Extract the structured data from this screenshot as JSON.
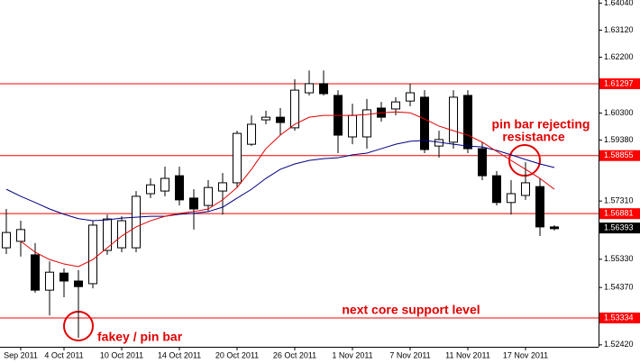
{
  "chart_data": {
    "type": "candlestick",
    "categories": [
      null,
      "Sep 2011",
      null,
      null,
      "4 Oct 2011",
      null,
      null,
      null,
      "10 Oct 2011",
      null,
      null,
      null,
      "14 Oct 2011",
      null,
      null,
      null,
      "20 Oct 2011",
      null,
      null,
      null,
      "26 Oct 2011",
      null,
      null,
      null,
      "1 Nov 2011",
      null,
      null,
      null,
      "7 Nov 2011",
      null,
      null,
      null,
      "11 Nov 2011",
      null,
      null,
      null,
      "17 Nov 2011",
      null,
      null
    ],
    "open": [
      1.5572,
      1.5594,
      1.5548,
      1.5428,
      1.5486,
      1.5459,
      1.545,
      1.5563,
      1.5572,
      1.5572,
      1.5756,
      1.5765,
      1.5817,
      1.5741,
      1.5716,
      1.5765,
      1.5793,
      1.5924,
      1.6007,
      1.6016,
      1.598,
      1.6099,
      1.613,
      1.609,
      1.5949,
      1.5949,
      1.6047,
      1.6044,
      1.6071,
      1.6084,
      1.5918,
      1.5931,
      1.609,
      1.5909,
      1.5817,
      1.5726,
      1.575,
      1.578,
      1.5643
    ],
    "high": [
      1.5704,
      1.5664,
      1.5588,
      1.5526,
      1.5502,
      1.5496,
      1.5664,
      1.5685,
      1.5679,
      1.5765,
      1.5808,
      1.5848,
      1.5848,
      1.5771,
      1.5802,
      1.5826,
      1.597,
      1.6022,
      1.6038,
      1.6047,
      1.6145,
      1.6175,
      1.6175,
      1.6108,
      1.6062,
      1.6078,
      1.6068,
      1.6084,
      1.613,
      1.6108,
      1.597,
      1.6108,
      1.6108,
      1.593,
      1.5833,
      1.5802,
      1.5863,
      1.5808,
      1.5649
    ],
    "low": [
      1.5551,
      1.5542,
      1.5419,
      1.5342,
      1.5404,
      1.5266,
      1.5434,
      1.5548,
      1.5557,
      1.5557,
      1.5741,
      1.5747,
      1.5716,
      1.5634,
      1.5695,
      1.5685,
      1.5777,
      1.5918,
      1.5992,
      1.5955,
      1.597,
      1.609,
      1.609,
      1.5894,
      1.5924,
      1.5909,
      1.6001,
      1.6022,
      1.6053,
      1.5894,
      1.5879,
      1.5909,
      1.5894,
      1.5802,
      1.5716,
      1.5685,
      1.5735,
      1.5612,
      1.5631
    ],
    "close": [
      1.5624,
      1.5634,
      1.5428,
      1.5489,
      1.5459,
      1.544,
      1.5649,
      1.567,
      1.5664,
      1.5747,
      1.5786,
      1.5808,
      1.5735,
      1.5704,
      1.5777,
      1.5793,
      1.5961,
      1.5992,
      1.6016,
      1.5998,
      1.6108,
      1.613,
      1.6096,
      1.5955,
      1.6022,
      1.6041,
      1.6016,
      1.6068,
      1.6099,
      1.5906,
      1.594,
      1.6084,
      1.5909,
      1.5817,
      1.5726,
      1.5756,
      1.5793,
      1.5643,
      1.5637
    ],
    "up_color": "#ffffff",
    "down_color": "#000000",
    "series": [
      {
        "color": "#000080",
        "values": [
          1.5771,
          1.5747,
          1.5726,
          1.5704,
          1.5686,
          1.5671,
          1.5664,
          1.5667,
          1.5673,
          1.5676,
          1.5679,
          1.5679,
          1.5686,
          1.5689,
          1.5695,
          1.571,
          1.5741,
          1.5771,
          1.5808,
          1.5839,
          1.5857,
          1.5869,
          1.5875,
          1.5878,
          1.5888,
          1.5894,
          1.5909,
          1.5924,
          1.5934,
          1.5937,
          1.5931,
          1.5924,
          1.5918,
          1.5915,
          1.5903,
          1.5888,
          1.5872,
          1.5857,
          1.5845
        ]
      },
      {
        "color": "#e00000",
        "values": [
          null,
          1.5594,
          1.5557,
          1.5532,
          1.5517,
          1.5508,
          1.5532,
          1.5572,
          1.5612,
          1.5643,
          1.5664,
          1.5679,
          1.5689,
          1.5695,
          1.5704,
          1.5735,
          1.5777,
          1.5839,
          1.5909,
          1.5955,
          1.5992,
          1.6016,
          1.6022,
          1.6022,
          1.6022,
          1.6025,
          1.6031,
          1.6034,
          1.6031,
          1.601,
          1.5986,
          1.597,
          1.5955,
          1.5931,
          1.59,
          1.5869,
          1.5839,
          1.5808,
          1.5771
        ]
      }
    ],
    "ylim": [
      1.52354,
      1.64145
    ],
    "yticks": [
      {
        "value": 1.6404,
        "label": "1.64040"
      },
      {
        "value": 1.6312,
        "label": "1.63120"
      },
      {
        "value": 1.622,
        "label": "1.62200"
      },
      {
        "value": 1.603,
        "label": "1.60300"
      },
      {
        "value": 1.5938,
        "label": "1.59380"
      },
      {
        "value": 1.5731,
        "label": "1.57310"
      },
      {
        "value": 1.5533,
        "label": "1.55330"
      },
      {
        "value": 1.5437,
        "label": "1.54370"
      },
      {
        "value": 1.5242,
        "label": "1.52420"
      }
    ],
    "levels": [
      1.61297,
      1.58855,
      1.56881,
      1.53334
    ],
    "level_color": "#ff0000",
    "current_price": 1.56393,
    "annotations": [
      "pin bar rejecting",
      "resistance",
      "next core support level",
      "fakey / pin bar"
    ],
    "annotation_color": "#e00000"
  }
}
